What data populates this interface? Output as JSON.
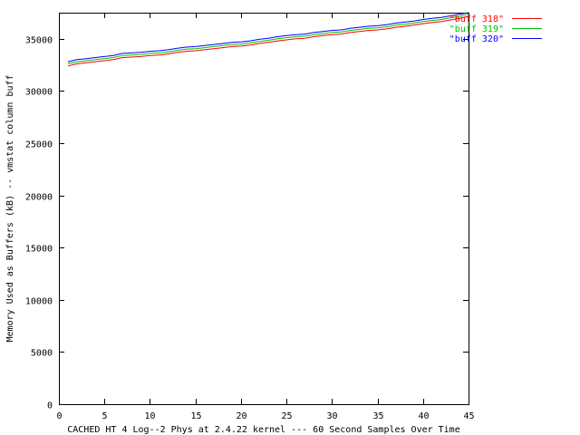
{
  "chart_data": {
    "type": "line",
    "title": "",
    "xlabel": "CACHED HT 4 Log--2 Phys at 2.4.22 kernel --- 60 Second Samples Over Time",
    "ylabel": "Memory Used as Buffers (kB) -- vmstat column buff",
    "xlim": [
      0,
      45
    ],
    "ylim": [
      0,
      37500
    ],
    "xticks": [
      "0",
      "5",
      "10",
      "15",
      "20",
      "25",
      "30",
      "35",
      "40",
      "45"
    ],
    "yticks": [
      "0",
      "5000",
      "10000",
      "15000",
      "20000",
      "25000",
      "30000",
      "35000"
    ],
    "grid": false,
    "legend_position": "top-right",
    "x": [
      1,
      2,
      3,
      4,
      5,
      6,
      7,
      8,
      9,
      10,
      11,
      12,
      13,
      14,
      15,
      16,
      17,
      18,
      19,
      20,
      21,
      22,
      23,
      24,
      25,
      26,
      27,
      28,
      29,
      30,
      31,
      32,
      33,
      34,
      35,
      36,
      37,
      38,
      39,
      40,
      41,
      42,
      43,
      44,
      45
    ],
    "series": [
      {
        "name": "\"buff 318\"",
        "color": "#ff0000",
        "values": [
          32400,
          32600,
          32700,
          32800,
          32900,
          33000,
          33200,
          33250,
          33300,
          33400,
          33450,
          33550,
          33700,
          33800,
          33850,
          33950,
          34050,
          34150,
          34250,
          34300,
          34400,
          34550,
          34650,
          34800,
          34900,
          35000,
          35050,
          35200,
          35300,
          35400,
          35450,
          35600,
          35700,
          35800,
          35850,
          35950,
          36100,
          36200,
          36300,
          36450,
          36550,
          36650,
          36800,
          36950,
          37150
        ]
      },
      {
        "name": "\"buff 319\"",
        "color": "#00c000",
        "values": [
          32600,
          32800,
          32900,
          33000,
          33100,
          33200,
          33400,
          33450,
          33500,
          33600,
          33650,
          33750,
          33900,
          34000,
          34050,
          34150,
          34250,
          34350,
          34450,
          34500,
          34600,
          34750,
          34850,
          35000,
          35100,
          35200,
          35250,
          35400,
          35500,
          35600,
          35650,
          35800,
          35900,
          36000,
          36050,
          36150,
          36300,
          36400,
          36500,
          36650,
          36750,
          36850,
          37000,
          37150,
          37350
        ]
      },
      {
        "name": "\"buff 320\"",
        "color": "#0000ff",
        "values": [
          32800,
          33000,
          33100,
          33200,
          33300,
          33400,
          33600,
          33650,
          33700,
          33800,
          33850,
          33950,
          34100,
          34200,
          34250,
          34350,
          34450,
          34550,
          34650,
          34700,
          34800,
          34950,
          35050,
          35200,
          35300,
          35400,
          35450,
          35600,
          35700,
          35800,
          35850,
          36000,
          36100,
          36200,
          36250,
          36350,
          36500,
          36600,
          36700,
          36850,
          36950,
          37050,
          37200,
          37350,
          37500
        ]
      }
    ]
  }
}
